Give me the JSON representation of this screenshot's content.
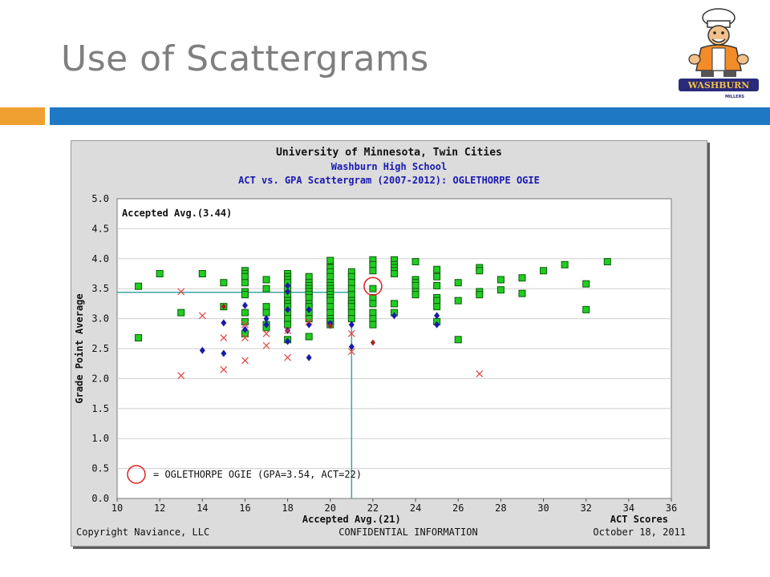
{
  "slide": {
    "title": "Use of Scattergrams",
    "logo_text": "WASHBURN",
    "logo_subtext": "MILLERS"
  },
  "colors": {
    "title_gray": "#7f7f7f",
    "accent_orange": "#f0a030",
    "accent_blue": "#1f78c4",
    "accepted_green": "#22cc22",
    "waitlist_blue": "#1a1aa8",
    "denied_red": "#e24040",
    "student_circle": "#e02020",
    "reference_line": "#3aa6a6",
    "header_blue": "#1a1ab0"
  },
  "chart_data": {
    "type": "scatter",
    "title": "University of Minnesota, Twin Cities",
    "subtitle": "Washburn High School",
    "subtitle2": "ACT vs. GPA Scattergram (2007-2012): OGLETHORPE OGIE",
    "xlabel": "ACT Scores",
    "ylabel": "Grade Point Average",
    "xlim": [
      10,
      36
    ],
    "ylim": [
      0.0,
      5.0
    ],
    "xticks": [
      "10",
      "12",
      "14",
      "16",
      "18",
      "20",
      "22",
      "24",
      "26",
      "28",
      "30",
      "32",
      "34",
      "36"
    ],
    "yticks": [
      "0.0",
      "0.5",
      "1.0",
      "1.5",
      "2.0",
      "2.5",
      "3.0",
      "3.5",
      "4.0",
      "4.5",
      "5.0"
    ],
    "grid": true,
    "accepted_avg_gpa": 3.44,
    "accepted_avg_act": 21,
    "accepted_avg_gpa_label": "Accepted Avg.(3.44)",
    "accepted_avg_act_label": "Accepted Avg.(21)",
    "student": {
      "act": 22,
      "gpa": 3.54
    },
    "student_label": "= OGLETHORPE OGIE (GPA=3.54, ACT=22)",
    "footer_left": "Copyright Naviance, LLC",
    "footer_center": "CONFIDENTIAL INFORMATION",
    "footer_right": "October 18, 2011",
    "series": [
      {
        "marker": "square",
        "points": [
          [
            11,
            3.54
          ],
          [
            11,
            2.68
          ],
          [
            12,
            3.75
          ],
          [
            13,
            3.1
          ],
          [
            14,
            3.75
          ],
          [
            15,
            3.6
          ],
          [
            15,
            3.2
          ],
          [
            16,
            3.8
          ],
          [
            16,
            3.75
          ],
          [
            16,
            3.7
          ],
          [
            16,
            3.6
          ],
          [
            16,
            3.45
          ],
          [
            16,
            3.4
          ],
          [
            16,
            3.1
          ],
          [
            16,
            2.95
          ],
          [
            16,
            2.75
          ],
          [
            17,
            3.65
          ],
          [
            17,
            3.5
          ],
          [
            17,
            3.2
          ],
          [
            17,
            3.1
          ],
          [
            17,
            2.9
          ],
          [
            17,
            2.85
          ],
          [
            18,
            3.75
          ],
          [
            18,
            3.7
          ],
          [
            18,
            3.65
          ],
          [
            18,
            3.6
          ],
          [
            18,
            3.5
          ],
          [
            18,
            3.4
          ],
          [
            18,
            3.3
          ],
          [
            18,
            3.25
          ],
          [
            18,
            3.2
          ],
          [
            18,
            3.1
          ],
          [
            18,
            3.0
          ],
          [
            18,
            2.9
          ],
          [
            18,
            2.65
          ],
          [
            19,
            3.7
          ],
          [
            19,
            3.6
          ],
          [
            19,
            3.55
          ],
          [
            19,
            3.5
          ],
          [
            19,
            3.45
          ],
          [
            19,
            3.4
          ],
          [
            19,
            3.35
          ],
          [
            19,
            3.25
          ],
          [
            19,
            3.2
          ],
          [
            19,
            3.1
          ],
          [
            19,
            3.0
          ],
          [
            19,
            2.7
          ],
          [
            20,
            3.97
          ],
          [
            20,
            3.85
          ],
          [
            20,
            3.78
          ],
          [
            20,
            3.7
          ],
          [
            20,
            3.6
          ],
          [
            20,
            3.55
          ],
          [
            20,
            3.5
          ],
          [
            20,
            3.45
          ],
          [
            20,
            3.4
          ],
          [
            20,
            3.35
          ],
          [
            20,
            3.3
          ],
          [
            20,
            3.2
          ],
          [
            20,
            3.1
          ],
          [
            20,
            3.0
          ],
          [
            20,
            2.95
          ],
          [
            20,
            2.9
          ],
          [
            21,
            3.78
          ],
          [
            21,
            3.7
          ],
          [
            21,
            3.6
          ],
          [
            21,
            3.5
          ],
          [
            21,
            3.4
          ],
          [
            21,
            3.3
          ],
          [
            21,
            3.25
          ],
          [
            21,
            3.2
          ],
          [
            21,
            3.1
          ],
          [
            21,
            3.0
          ],
          [
            22,
            3.98
          ],
          [
            22,
            3.9
          ],
          [
            22,
            3.8
          ],
          [
            22,
            3.5
          ],
          [
            22,
            3.35
          ],
          [
            22,
            3.25
          ],
          [
            22,
            3.1
          ],
          [
            22,
            3.0
          ],
          [
            22,
            2.9
          ],
          [
            23,
            3.98
          ],
          [
            23,
            3.9
          ],
          [
            23,
            3.85
          ],
          [
            23,
            3.8
          ],
          [
            23,
            3.75
          ],
          [
            23,
            3.25
          ],
          [
            23,
            3.1
          ],
          [
            24,
            3.95
          ],
          [
            24,
            3.65
          ],
          [
            24,
            3.6
          ],
          [
            24,
            3.55
          ],
          [
            24,
            3.45
          ],
          [
            24,
            3.4
          ],
          [
            25,
            3.82
          ],
          [
            25,
            3.7
          ],
          [
            25,
            3.55
          ],
          [
            25,
            3.35
          ],
          [
            25,
            3.3
          ],
          [
            25,
            3.2
          ],
          [
            25,
            2.95
          ],
          [
            26,
            3.6
          ],
          [
            26,
            3.3
          ],
          [
            26,
            2.65
          ],
          [
            27,
            3.85
          ],
          [
            27,
            3.8
          ],
          [
            27,
            3.45
          ],
          [
            27,
            3.4
          ],
          [
            28,
            3.65
          ],
          [
            28,
            3.48
          ],
          [
            29,
            3.68
          ],
          [
            29,
            3.42
          ],
          [
            30,
            3.8
          ],
          [
            31,
            3.9
          ],
          [
            32,
            3.58
          ],
          [
            32,
            3.15
          ],
          [
            33,
            3.95
          ]
        ]
      },
      {
        "marker": "diamond",
        "points": [
          [
            14,
            2.47
          ],
          [
            15,
            2.93
          ],
          [
            15,
            2.42
          ],
          [
            16,
            3.22
          ],
          [
            16,
            2.82
          ],
          [
            17,
            3.0
          ],
          [
            17,
            2.9
          ],
          [
            18,
            3.55
          ],
          [
            18,
            3.45
          ],
          [
            18,
            3.15
          ],
          [
            18,
            2.8
          ],
          [
            18,
            2.62
          ],
          [
            19,
            3.15
          ],
          [
            19,
            2.9
          ],
          [
            19,
            2.35
          ],
          [
            20,
            2.92
          ],
          [
            21,
            2.9
          ],
          [
            21,
            2.53
          ],
          [
            23,
            3.05
          ],
          [
            25,
            3.05
          ],
          [
            25,
            2.9
          ]
        ]
      },
      {
        "marker": "cross",
        "points": [
          [
            13,
            3.45
          ],
          [
            13,
            2.05
          ],
          [
            14,
            3.05
          ],
          [
            15,
            2.68
          ],
          [
            15,
            2.15
          ],
          [
            16,
            2.9
          ],
          [
            16,
            2.68
          ],
          [
            16,
            2.3
          ],
          [
            17,
            2.75
          ],
          [
            17,
            2.55
          ],
          [
            18,
            2.8
          ],
          [
            18,
            2.35
          ],
          [
            19,
            2.95
          ],
          [
            21,
            2.75
          ],
          [
            21,
            2.45
          ],
          [
            27,
            2.08
          ]
        ]
      },
      {
        "marker": "small-diamond",
        "points": [
          [
            15,
            3.2
          ],
          [
            20,
            2.88
          ],
          [
            22,
            2.6
          ]
        ]
      }
    ]
  }
}
